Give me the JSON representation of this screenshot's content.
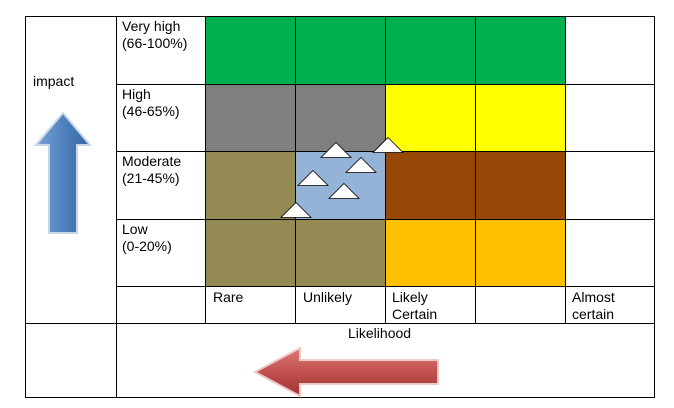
{
  "axes": {
    "y_label": "impact",
    "x_label": "Likelihood"
  },
  "rows": [
    {
      "label": "Very high\n(66-100%)",
      "colors": [
        "#00b050",
        "#00b050",
        "#00b050",
        "#00b050",
        "#ffffff"
      ]
    },
    {
      "label": "High\n(46-65%)",
      "colors": [
        "#7f7f7f",
        "#7f7f7f",
        "#ffff00",
        "#ffff00",
        "#ffffff"
      ]
    },
    {
      "label": "Moderate\n(21-45%)",
      "colors": [
        "#948a54",
        "#95b3d7",
        "#984806",
        "#984806",
        "#ffffff"
      ]
    },
    {
      "label": "Low\n(0-20%)",
      "colors": [
        "#948a54",
        "#948a54",
        "#ffc000",
        "#ffc000",
        "#ffffff"
      ]
    }
  ],
  "columns": [
    "Rare",
    "Unlikely",
    "Likely\nCertain",
    "",
    "Almost\ncertain"
  ],
  "markers": {
    "shape": "triangle",
    "fill": "#ffffff",
    "count": 6
  },
  "arrows": {
    "up_color": "#4f81bd",
    "left_color": "#c0504d"
  }
}
